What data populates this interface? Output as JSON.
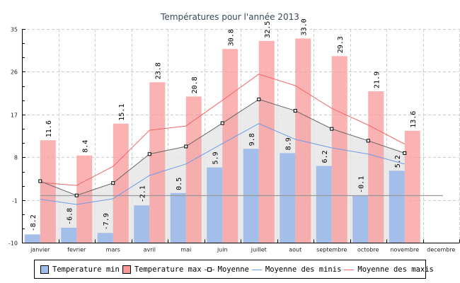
{
  "chart_data": {
    "type": "bar",
    "title": "Températures pour l'année 2013",
    "xlabel": "",
    "ylabel": "",
    "ylim": [
      -10,
      35
    ],
    "yticks": [
      "35",
      "26",
      "17",
      "8",
      "-1",
      "-10"
    ],
    "ytick_values": [
      35,
      26,
      17,
      8,
      -1,
      -10
    ],
    "grid": true,
    "categories": [
      "janvier",
      "fevrier",
      "mars",
      "avril",
      "mai",
      "juin",
      "juillet",
      "aout",
      "septembre",
      "octobre",
      "novembre",
      "decembre"
    ],
    "series": [
      {
        "name": "Temperature min",
        "kind": "bar",
        "color": "#a0bcea",
        "values": [
          -8.2,
          -6.8,
          -7.9,
          -2.1,
          0.5,
          5.9,
          9.8,
          8.9,
          6.2,
          -0.1,
          5.2,
          null
        ],
        "labels": [
          "-8.2",
          "-6.8",
          "-7.9",
          "-2.1",
          "0.5",
          "5.9",
          "9.8",
          "8.9",
          "6.2",
          "-0.1",
          "5.2",
          ""
        ]
      },
      {
        "name": "Temperature max",
        "kind": "bar",
        "color": "#f89898",
        "values": [
          11.6,
          8.4,
          15.1,
          23.8,
          20.8,
          30.8,
          32.5,
          33.0,
          29.3,
          21.9,
          13.6,
          null
        ],
        "labels": [
          "11.6",
          "8.4",
          "15.1",
          "23.8",
          "20.8",
          "30.8",
          "32.5",
          "33.0",
          "29.3",
          "21.9",
          "13.6",
          ""
        ]
      },
      {
        "name": "Moyenne",
        "kind": "line-marker-area",
        "color": "#666666",
        "values": [
          3.0,
          0.0,
          2.6,
          8.7,
          10.3,
          15.2,
          20.2,
          17.8,
          14.0,
          11.5,
          8.9,
          null
        ]
      },
      {
        "name": "Moyenne des minis",
        "kind": "line",
        "color": "#6f9be8",
        "values": [
          -0.8,
          -1.9,
          -0.7,
          4.2,
          6.6,
          10.9,
          15.1,
          11.8,
          10.0,
          8.7,
          6.6,
          null
        ]
      },
      {
        "name": "Moyenne des maxis",
        "kind": "line",
        "color": "#f06868",
        "values": [
          2.7,
          2.1,
          6.1,
          13.7,
          14.6,
          20.0,
          25.5,
          23.1,
          18.3,
          14.8,
          10.8,
          null
        ]
      }
    ],
    "reference_line": {
      "value": 0,
      "color": "#999999"
    },
    "legend_position": "bottom"
  },
  "legend": {
    "items": [
      {
        "label": "Temperature min",
        "type": "box",
        "color": "#a0bcea"
      },
      {
        "label": "Temperature max",
        "type": "box",
        "color": "#f89898"
      },
      {
        "label": "Moyenne",
        "type": "marker",
        "color": "#666666"
      },
      {
        "label": "Moyenne des minis",
        "type": "line",
        "color": "#6f9be8"
      },
      {
        "label": "Moyenne des maxis",
        "type": "line",
        "color": "#f06868"
      }
    ]
  }
}
